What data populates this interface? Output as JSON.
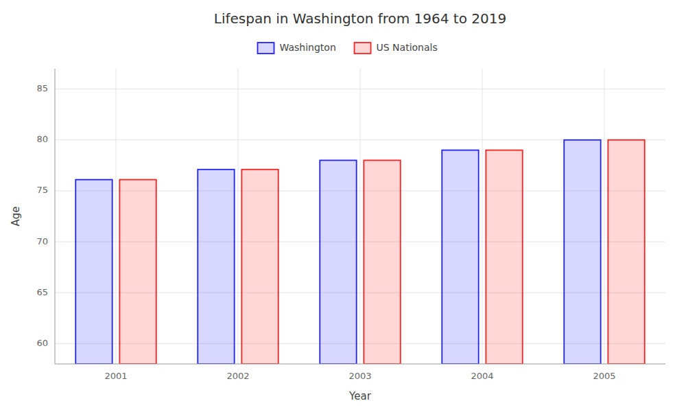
{
  "chart_data": {
    "type": "bar",
    "title": "Lifespan in Washington from 1964 to 2019",
    "x_label": "Year",
    "y_label": "Age",
    "categories": [
      "2001",
      "2002",
      "2003",
      "2004",
      "2005"
    ],
    "series": [
      {
        "name": "Washington",
        "color": "#2222ff",
        "values": [
          76.1,
          77.1,
          78.0,
          79.0,
          80.0
        ]
      },
      {
        "name": "US Nationals",
        "color": "#ff2222",
        "values": [
          76.1,
          77.1,
          78.0,
          79.0,
          80.0
        ]
      }
    ],
    "ylim": [
      58,
      87
    ],
    "yticks": [
      60,
      65,
      70,
      75,
      80,
      85
    ],
    "grid": true,
    "legend": "top"
  }
}
